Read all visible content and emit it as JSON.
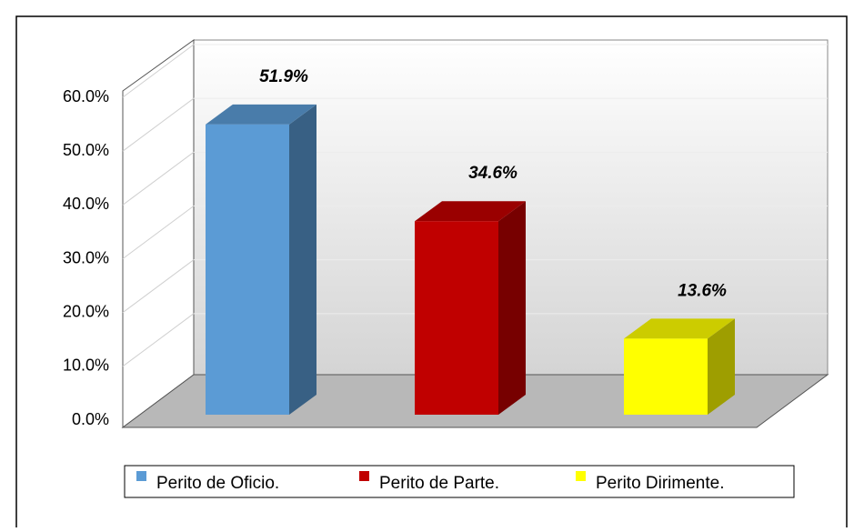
{
  "chart_data": {
    "type": "bar3d",
    "categories": [
      "Perito de Oficio.",
      "Perito de Parte.",
      "Perito Dirimente."
    ],
    "values": [
      51.9,
      34.6,
      13.6
    ],
    "value_labels": [
      "51.9%",
      "34.6%",
      "13.6%"
    ],
    "colors": [
      "#5b9bd5",
      "#c00000",
      "#ffff00"
    ],
    "ylim": [
      0,
      60
    ],
    "yticks": [
      {
        "value": 0,
        "label": "0.0%"
      },
      {
        "value": 10,
        "label": "10.0%"
      },
      {
        "value": 20,
        "label": "20.0%"
      },
      {
        "value": 30,
        "label": "30.0%"
      },
      {
        "value": 40,
        "label": "40.0%"
      },
      {
        "value": 50,
        "label": "50.0%"
      },
      {
        "value": 60,
        "label": "60.0%"
      }
    ],
    "grid": true
  }
}
